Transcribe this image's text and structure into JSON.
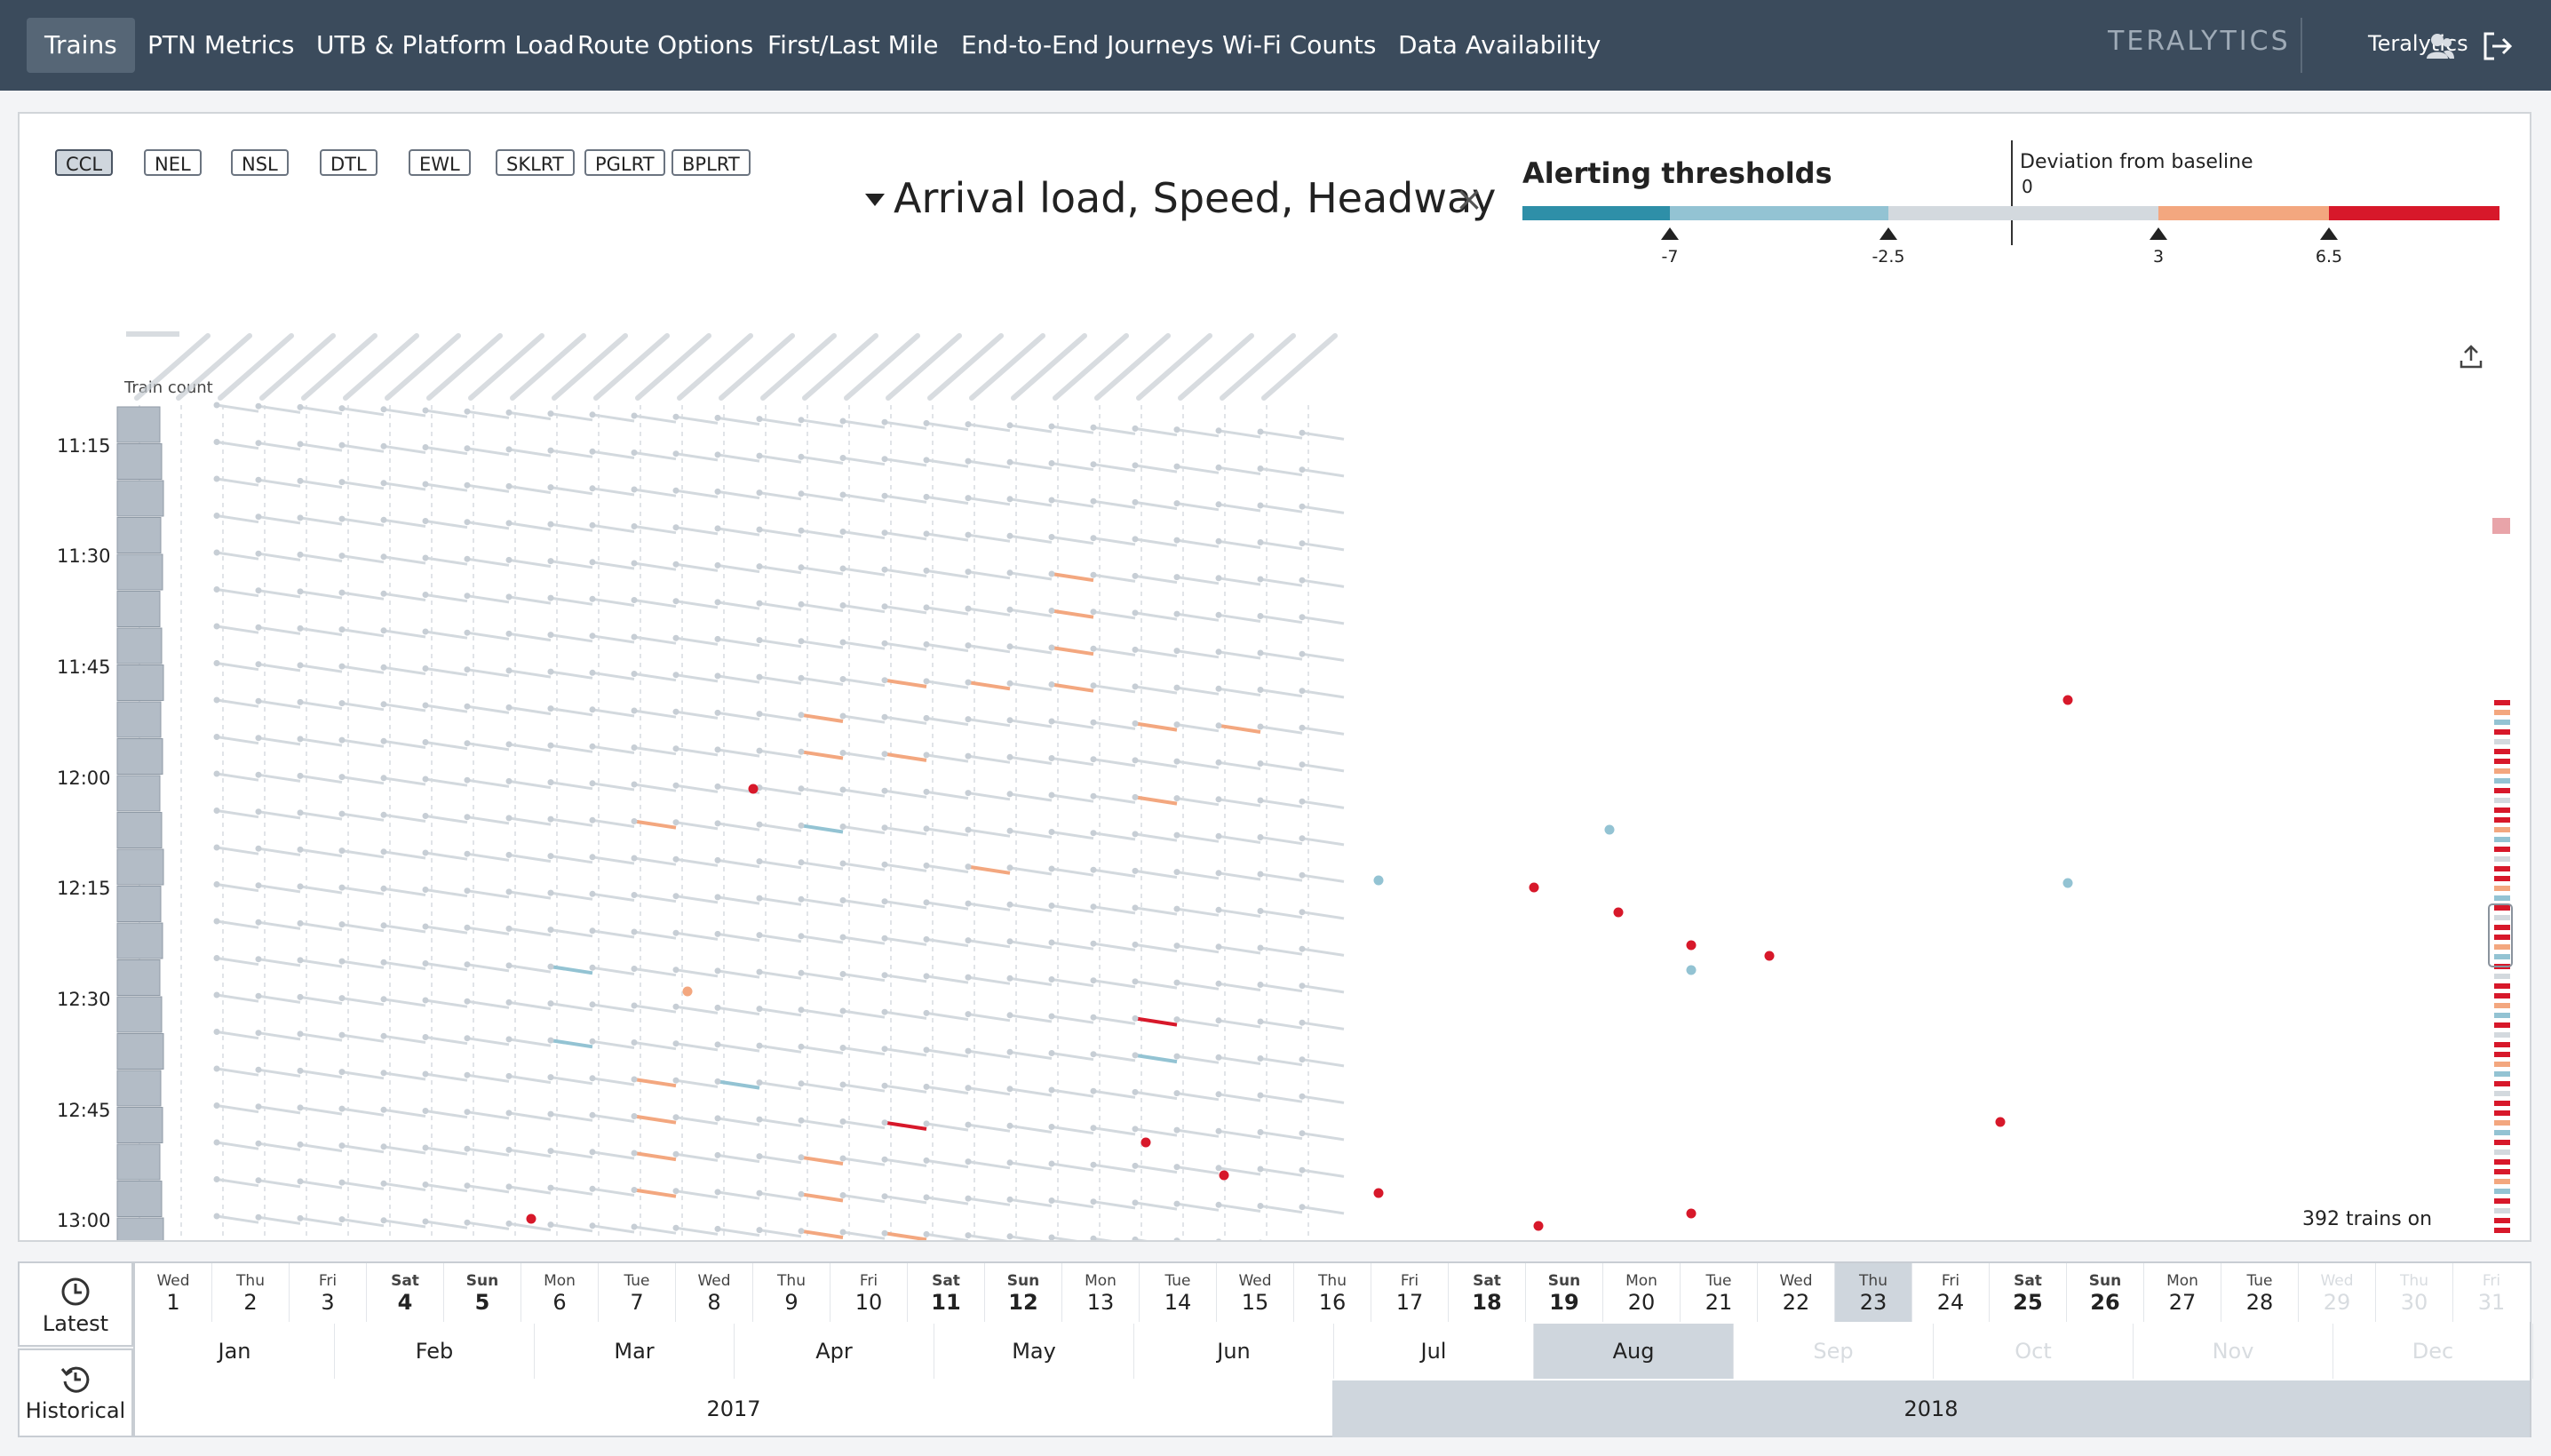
{
  "nav": {
    "tabs": [
      "Trains",
      "PTN Metrics",
      "UTB & Platform Load",
      "Route Options",
      "First/Last Mile",
      "End-to-End Journeys",
      "Wi-Fi Counts",
      "Data Availability"
    ],
    "active_tab": "Trains",
    "brand": "TERALYTICS",
    "user": "Teralytics",
    "icons": {
      "user": "user-icon",
      "logout": "logout-icon"
    }
  },
  "lines": [
    "CCL",
    "NEL",
    "NSL",
    "DTL",
    "EWL",
    "SKLRT",
    "PGLRT",
    "BPLRT"
  ],
  "active_line": "CCL",
  "layer": {
    "title": "Arrival load, Speed, Headway",
    "close": "×"
  },
  "thresholds": {
    "title": "Alerting thresholds",
    "deviation_title": "Deviation from baseline",
    "zero_label": "0",
    "ticks": [
      "-7",
      "-2.5",
      "3",
      "6.5"
    ],
    "colors": {
      "strong_low": "#2e8fa8",
      "low": "#93c3d3",
      "neutral": "#d3d9de",
      "high": "#f3a77f",
      "strong_high": "#d7182a"
    }
  },
  "chart": {
    "train_count_label": "Train count",
    "time_labels": [
      "11:15",
      "11:30",
      "11:45",
      "12:00",
      "12:15",
      "12:30",
      "12:45",
      "13:00"
    ],
    "trains_on": "392 trains on"
  },
  "timeline": {
    "modes": [
      "Latest",
      "Historical"
    ],
    "days": [
      {
        "dw": "Wed",
        "dn": "1"
      },
      {
        "dw": "Thu",
        "dn": "2"
      },
      {
        "dw": "Fri",
        "dn": "3"
      },
      {
        "dw": "Sat",
        "dn": "4"
      },
      {
        "dw": "Sun",
        "dn": "5"
      },
      {
        "dw": "Mon",
        "dn": "6"
      },
      {
        "dw": "Tue",
        "dn": "7"
      },
      {
        "dw": "Wed",
        "dn": "8"
      },
      {
        "dw": "Thu",
        "dn": "9"
      },
      {
        "dw": "Fri",
        "dn": "10"
      },
      {
        "dw": "Sat",
        "dn": "11"
      },
      {
        "dw": "Sun",
        "dn": "12"
      },
      {
        "dw": "Mon",
        "dn": "13"
      },
      {
        "dw": "Tue",
        "dn": "14"
      },
      {
        "dw": "Wed",
        "dn": "15"
      },
      {
        "dw": "Thu",
        "dn": "16"
      },
      {
        "dw": "Fri",
        "dn": "17"
      },
      {
        "dw": "Sat",
        "dn": "18"
      },
      {
        "dw": "Sun",
        "dn": "19"
      },
      {
        "dw": "Mon",
        "dn": "20"
      },
      {
        "dw": "Tue",
        "dn": "21"
      },
      {
        "dw": "Wed",
        "dn": "22"
      },
      {
        "dw": "Thu",
        "dn": "23"
      },
      {
        "dw": "Fri",
        "dn": "24"
      },
      {
        "dw": "Sat",
        "dn": "25"
      },
      {
        "dw": "Sun",
        "dn": "26"
      },
      {
        "dw": "Mon",
        "dn": "27"
      },
      {
        "dw": "Tue",
        "dn": "28"
      },
      {
        "dw": "Wed",
        "dn": "29"
      },
      {
        "dw": "Thu",
        "dn": "30"
      },
      {
        "dw": "Fri",
        "dn": "31"
      }
    ],
    "selected_day": "23",
    "months": [
      "Jan",
      "Feb",
      "Mar",
      "Apr",
      "May",
      "Jun",
      "Jul",
      "Aug",
      "Sep",
      "Oct",
      "Nov",
      "Dec"
    ],
    "selected_month": "Aug",
    "years": [
      "2017",
      "2018"
    ],
    "selected_year": "2018"
  }
}
